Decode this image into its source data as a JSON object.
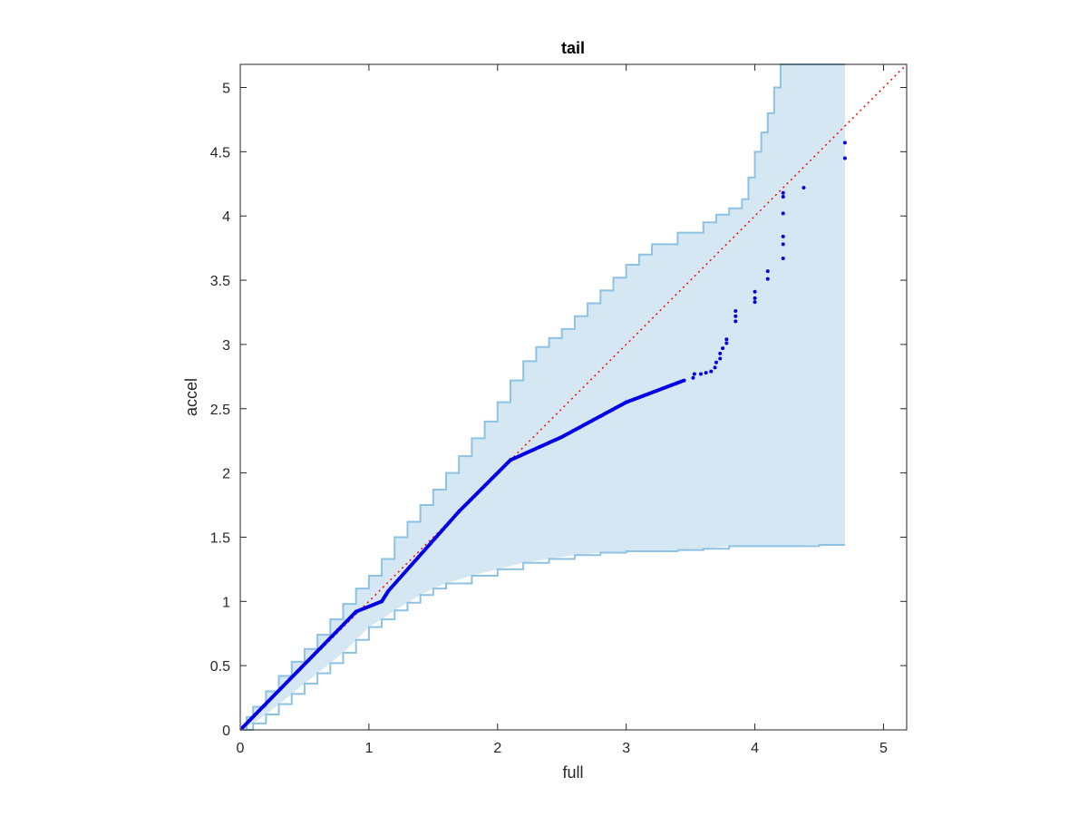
{
  "chart_data": {
    "type": "scatter",
    "title": "tail",
    "xlabel": "full",
    "ylabel": "accel",
    "xlim": [
      0,
      5.18
    ],
    "ylim": [
      0,
      5.18
    ],
    "x_ticks": [
      0,
      1,
      2,
      3,
      4,
      5
    ],
    "x_tick_labels": [
      "0",
      "1",
      "2",
      "3",
      "4",
      "5"
    ],
    "y_ticks": [
      0,
      0.5,
      1,
      1.5,
      2,
      2.5,
      3,
      3.5,
      4,
      4.5,
      5
    ],
    "y_tick_labels": [
      "0",
      "0.5",
      "1",
      "1.5",
      "2",
      "2.5",
      "3",
      "3.5",
      "4",
      "4.5",
      "5"
    ],
    "grid": false,
    "colors": {
      "points": "#0000e6",
      "reference": "#ff0000",
      "band_fill": "#d6e7f4",
      "band_edge": "#8ec2e2",
      "axes": "#262626"
    },
    "reference_line": {
      "x": [
        0,
        5.18
      ],
      "y": [
        0,
        5.18
      ],
      "style": "dotted"
    },
    "band": {
      "upper": [
        [
          0,
          0
        ],
        [
          0.05,
          0.1
        ],
        [
          0.1,
          0.18
        ],
        [
          0.2,
          0.3
        ],
        [
          0.3,
          0.42
        ],
        [
          0.4,
          0.53
        ],
        [
          0.5,
          0.63
        ],
        [
          0.6,
          0.74
        ],
        [
          0.7,
          0.86
        ],
        [
          0.8,
          0.98
        ],
        [
          0.9,
          1.1
        ],
        [
          1.0,
          1.2
        ],
        [
          1.1,
          1.33
        ],
        [
          1.2,
          1.5
        ],
        [
          1.3,
          1.62
        ],
        [
          1.4,
          1.75
        ],
        [
          1.5,
          1.87
        ],
        [
          1.6,
          2.0
        ],
        [
          1.7,
          2.13
        ],
        [
          1.8,
          2.27
        ],
        [
          1.9,
          2.4
        ],
        [
          2.0,
          2.55
        ],
        [
          2.1,
          2.72
        ],
        [
          2.2,
          2.87
        ],
        [
          2.3,
          2.98
        ],
        [
          2.4,
          3.05
        ],
        [
          2.5,
          3.12
        ],
        [
          2.6,
          3.22
        ],
        [
          2.7,
          3.32
        ],
        [
          2.8,
          3.42
        ],
        [
          2.9,
          3.52
        ],
        [
          3.0,
          3.62
        ],
        [
          3.1,
          3.7
        ],
        [
          3.2,
          3.78
        ],
        [
          3.4,
          3.87
        ],
        [
          3.6,
          3.95
        ],
        [
          3.7,
          4.01
        ],
        [
          3.8,
          4.06
        ],
        [
          3.9,
          4.13
        ],
        [
          3.95,
          4.3
        ],
        [
          4.0,
          4.5
        ],
        [
          4.05,
          4.65
        ],
        [
          4.1,
          4.8
        ],
        [
          4.15,
          5.0
        ],
        [
          4.2,
          5.18
        ],
        [
          4.7,
          5.18
        ]
      ],
      "lower": [
        [
          0,
          0
        ],
        [
          0.1,
          0.05
        ],
        [
          0.2,
          0.12
        ],
        [
          0.3,
          0.2
        ],
        [
          0.4,
          0.28
        ],
        [
          0.5,
          0.36
        ],
        [
          0.6,
          0.44
        ],
        [
          0.7,
          0.52
        ],
        [
          0.8,
          0.6
        ],
        [
          0.9,
          0.7
        ],
        [
          1.0,
          0.8
        ],
        [
          1.1,
          0.86
        ],
        [
          1.2,
          0.93
        ],
        [
          1.3,
          0.99
        ],
        [
          1.4,
          1.05
        ],
        [
          1.5,
          1.1
        ],
        [
          1.6,
          1.14
        ],
        [
          1.8,
          1.2
        ],
        [
          2.0,
          1.25
        ],
        [
          2.2,
          1.3
        ],
        [
          2.4,
          1.33
        ],
        [
          2.6,
          1.36
        ],
        [
          2.8,
          1.38
        ],
        [
          3.0,
          1.39
        ],
        [
          3.2,
          1.39
        ],
        [
          3.4,
          1.4
        ],
        [
          3.6,
          1.41
        ],
        [
          3.8,
          1.43
        ],
        [
          4.0,
          1.43
        ],
        [
          4.2,
          1.43
        ],
        [
          4.5,
          1.44
        ],
        [
          4.7,
          1.44
        ]
      ]
    },
    "point_segments": [
      {
        "from": [
          0.02,
          0.02
        ],
        "to": [
          0.9,
          0.92
        ],
        "step": 0.01
      },
      {
        "from": [
          0.9,
          0.92
        ],
        "to": [
          1.1,
          1.0
        ],
        "step": 0.01
      },
      {
        "from": [
          1.1,
          1.0
        ],
        "to": [
          1.15,
          1.08
        ],
        "step": 0.005
      },
      {
        "from": [
          1.15,
          1.08
        ],
        "to": [
          1.7,
          1.7
        ],
        "step": 0.01
      },
      {
        "from": [
          1.7,
          1.7
        ],
        "to": [
          2.1,
          2.1
        ],
        "step": 0.01
      },
      {
        "from": [
          2.1,
          2.1
        ],
        "to": [
          2.5,
          2.28
        ],
        "step": 0.01
      },
      {
        "from": [
          2.5,
          2.28
        ],
        "to": [
          3.0,
          2.55
        ],
        "step": 0.01
      },
      {
        "from": [
          3.0,
          2.55
        ],
        "to": [
          3.45,
          2.72
        ],
        "step": 0.01
      }
    ],
    "points": [
      [
        3.52,
        2.74
      ],
      [
        3.53,
        2.77
      ],
      [
        3.58,
        2.77
      ],
      [
        3.62,
        2.78
      ],
      [
        3.66,
        2.79
      ],
      [
        3.69,
        2.82
      ],
      [
        3.7,
        2.86
      ],
      [
        3.73,
        2.89
      ],
      [
        3.73,
        2.93
      ],
      [
        3.75,
        2.97
      ],
      [
        3.78,
        3.01
      ],
      [
        3.78,
        3.04
      ],
      [
        3.85,
        3.18
      ],
      [
        3.85,
        3.22
      ],
      [
        3.85,
        3.26
      ],
      [
        4.0,
        3.33
      ],
      [
        4.0,
        3.36
      ],
      [
        4.0,
        3.41
      ],
      [
        4.1,
        3.51
      ],
      [
        4.1,
        3.57
      ],
      [
        4.22,
        3.67
      ],
      [
        4.22,
        3.78
      ],
      [
        4.22,
        3.84
      ],
      [
        4.22,
        4.02
      ],
      [
        4.22,
        4.15
      ],
      [
        4.22,
        4.18
      ],
      [
        4.38,
        4.22
      ],
      [
        4.7,
        4.45
      ],
      [
        4.7,
        4.57
      ]
    ]
  }
}
